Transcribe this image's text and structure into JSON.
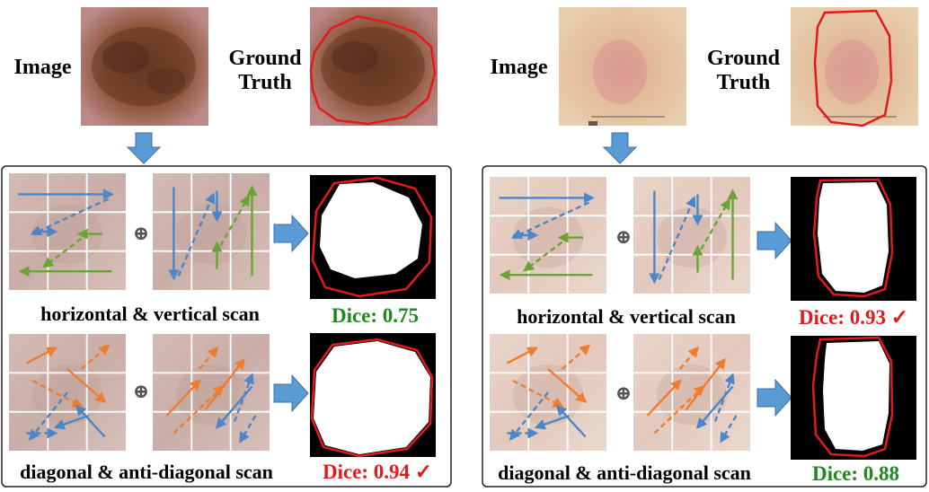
{
  "colors": {
    "scan_blue": "#4a86c8",
    "scan_green": "#6aa436",
    "scan_orange": "#ec7d31",
    "contour_red": "#e31a1c",
    "dice_green": "#1e8a1e",
    "dice_red": "#e31a1c",
    "flow_arrow": "#5b9bd5"
  },
  "symbols": {
    "combine": "⊕",
    "check": "✓"
  },
  "left": {
    "image_label": "Image",
    "gt_label": "Ground Truth",
    "hv_caption": "horizontal & vertical scan",
    "hv_dice": "Dice: 0.75",
    "diag_caption": "diagonal & anti-diagonal scan",
    "diag_dice": "Dice: 0.94"
  },
  "right": {
    "image_label": "Image",
    "gt_label": "Ground Truth",
    "hv_caption": "horizontal & vertical scan",
    "hv_dice": "Dice: 0.93",
    "diag_caption": "diagonal & anti-diagonal scan",
    "diag_dice": "Dice: 0.88"
  }
}
